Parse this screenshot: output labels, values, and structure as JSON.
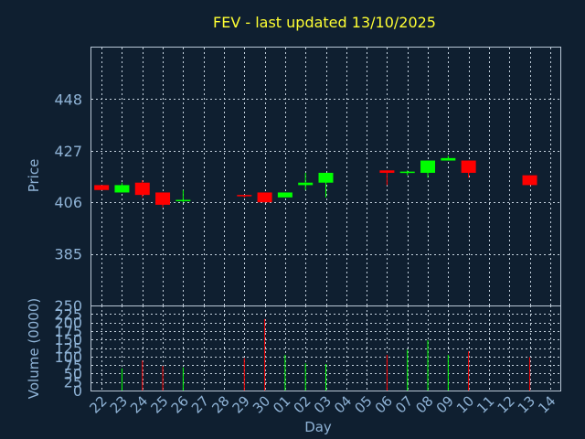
{
  "chart_data": {
    "type": "candlestick",
    "title": "FEV - last updated 13/10/2025",
    "xlabel": "Day",
    "x_ticks": [
      "22",
      "23",
      "24",
      "25",
      "26",
      "27",
      "28",
      "29",
      "30",
      "01",
      "02",
      "03",
      "04",
      "05",
      "06",
      "07",
      "08",
      "09",
      "10",
      "11",
      "12",
      "13",
      "14"
    ],
    "price_panel": {
      "ylabel": "Price",
      "ylim": [
        364,
        469
      ],
      "y_ticks": [
        385,
        406,
        427,
        448
      ],
      "grid": true
    },
    "volume_panel": {
      "ylabel": "Volume (0000)",
      "ylim": [
        0,
        250
      ],
      "y_ticks": [
        0,
        25,
        50,
        75,
        100,
        125,
        150,
        175,
        200,
        225,
        250
      ],
      "grid": true
    },
    "colors": {
      "up": "#00ff00",
      "down": "#ff0000",
      "title": "#ffff33",
      "axis_text": "#8fb3d6",
      "background": "#0f1f30"
    },
    "candles": [
      {
        "day": "22",
        "open": 413,
        "close": 411,
        "high": 413,
        "low": 411,
        "volume": 0
      },
      {
        "day": "23",
        "open": 410,
        "close": 413,
        "high": 414,
        "low": 410,
        "volume": 65
      },
      {
        "day": "24",
        "open": 414,
        "close": 409,
        "high": 415,
        "low": 408,
        "volume": 88
      },
      {
        "day": "25",
        "open": 410,
        "close": 405,
        "high": 410,
        "low": 404,
        "volume": 72
      },
      {
        "day": "26",
        "open": 406.5,
        "close": 407,
        "high": 411,
        "low": 406,
        "volume": 68
      },
      {
        "day": "29",
        "open": 409,
        "close": 408.5,
        "high": 409,
        "low": 408,
        "volume": 95
      },
      {
        "day": "30",
        "open": 410,
        "close": 406,
        "high": 410,
        "low": 406,
        "volume": 210
      },
      {
        "day": "01",
        "open": 408,
        "close": 410,
        "high": 410,
        "low": 408,
        "volume": 105
      },
      {
        "day": "02",
        "open": 413,
        "close": 414,
        "high": 418,
        "low": 411,
        "volume": 80
      },
      {
        "day": "03",
        "open": 414,
        "close": 418,
        "high": 418,
        "low": 408,
        "volume": 78
      },
      {
        "day": "06",
        "open": 419,
        "close": 418,
        "high": 419,
        "low": 413,
        "volume": 105
      },
      {
        "day": "07",
        "open": 418,
        "close": 418.5,
        "high": 419,
        "low": 417,
        "volume": 120
      },
      {
        "day": "08",
        "open": 418,
        "close": 423,
        "high": 423,
        "low": 416,
        "volume": 148
      },
      {
        "day": "09",
        "open": 423,
        "close": 424,
        "high": 425,
        "low": 423,
        "volume": 105
      },
      {
        "day": "10",
        "open": 423,
        "close": 418,
        "high": 423,
        "low": 416,
        "volume": 115
      },
      {
        "day": "13",
        "open": 417,
        "close": 413,
        "high": 417,
        "low": 413,
        "volume": 98
      }
    ]
  }
}
